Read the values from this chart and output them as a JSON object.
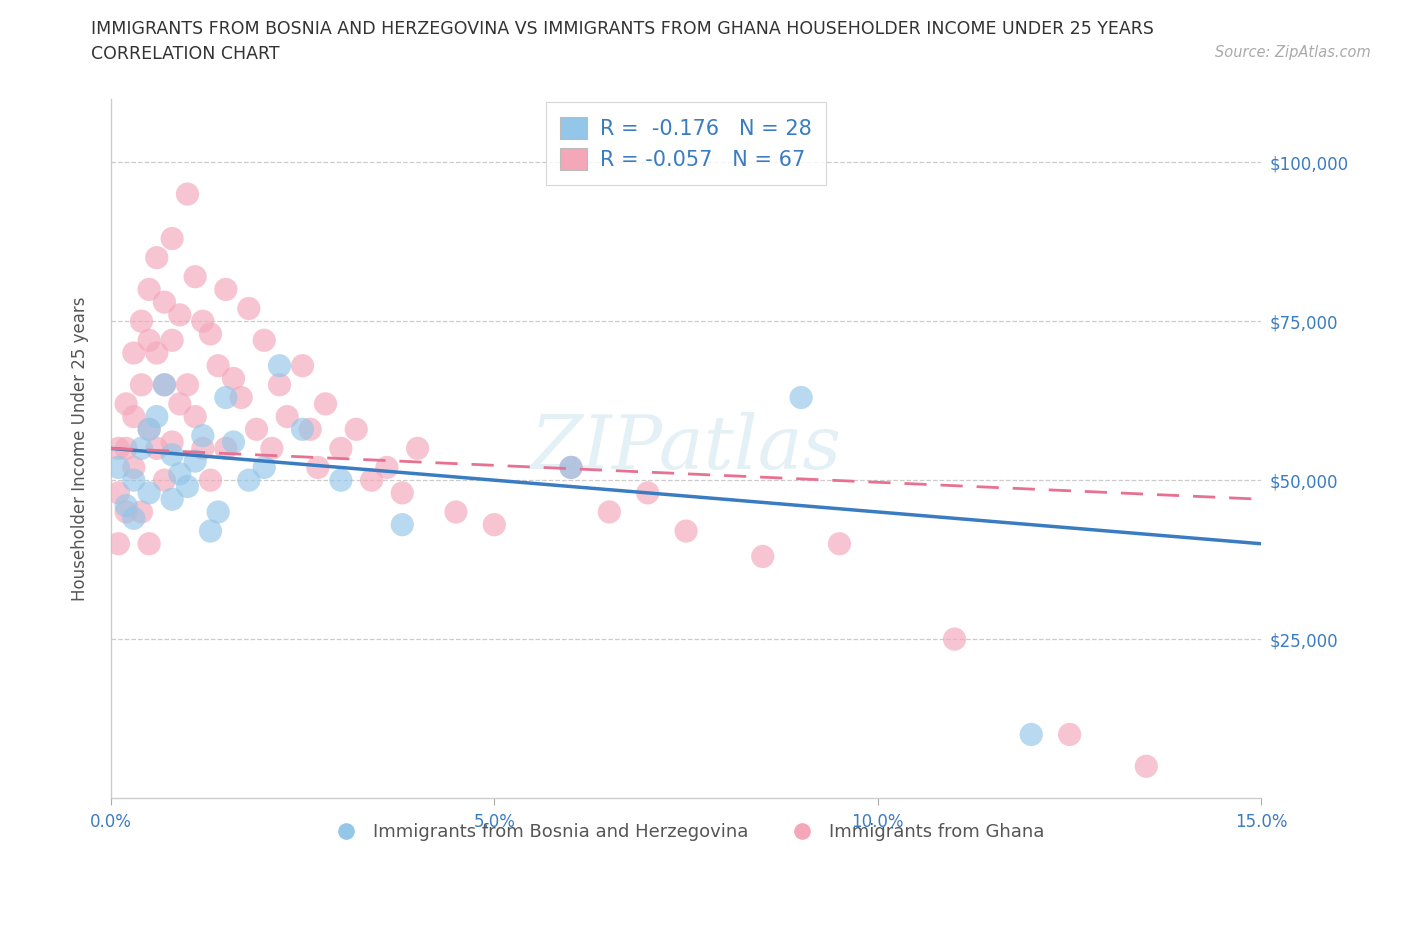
{
  "title_line1": "IMMIGRANTS FROM BOSNIA AND HERZEGOVINA VS IMMIGRANTS FROM GHANA HOUSEHOLDER INCOME UNDER 25 YEARS",
  "title_line2": "CORRELATION CHART",
  "source": "Source: ZipAtlas.com",
  "ylabel": "Householder Income Under 25 years",
  "xlim": [
    0.0,
    0.15
  ],
  "ylim": [
    0,
    110000
  ],
  "yticks": [
    0,
    25000,
    50000,
    75000,
    100000
  ],
  "ytick_labels": [
    "",
    "$25,000",
    "$50,000",
    "$75,000",
    "$100,000"
  ],
  "xticks": [
    0.0,
    0.05,
    0.1,
    0.15
  ],
  "xtick_labels": [
    "0.0%",
    "5.0%",
    "10.0%",
    "15.0%"
  ],
  "r1": -0.176,
  "n1": 28,
  "r2": -0.057,
  "n2": 67,
  "color_bosnia": "#93C6E8",
  "color_ghana": "#F4A7B9",
  "line_color_bosnia": "#3A7CC1",
  "line_color_ghana": "#E87090",
  "bosnia_x": [
    0.001,
    0.002,
    0.003,
    0.003,
    0.004,
    0.005,
    0.005,
    0.006,
    0.007,
    0.008,
    0.008,
    0.009,
    0.01,
    0.011,
    0.012,
    0.013,
    0.014,
    0.015,
    0.016,
    0.018,
    0.02,
    0.022,
    0.025,
    0.03,
    0.038,
    0.06,
    0.09,
    0.12
  ],
  "bosnia_y": [
    52000,
    46000,
    50000,
    44000,
    55000,
    58000,
    48000,
    60000,
    65000,
    54000,
    47000,
    51000,
    49000,
    53000,
    57000,
    42000,
    45000,
    63000,
    56000,
    50000,
    52000,
    68000,
    58000,
    50000,
    43000,
    52000,
    63000,
    10000
  ],
  "ghana_x": [
    0.001,
    0.001,
    0.001,
    0.002,
    0.002,
    0.002,
    0.003,
    0.003,
    0.003,
    0.004,
    0.004,
    0.004,
    0.005,
    0.005,
    0.005,
    0.005,
    0.006,
    0.006,
    0.006,
    0.007,
    0.007,
    0.007,
    0.008,
    0.008,
    0.008,
    0.009,
    0.009,
    0.01,
    0.01,
    0.011,
    0.011,
    0.012,
    0.012,
    0.013,
    0.013,
    0.014,
    0.015,
    0.015,
    0.016,
    0.017,
    0.018,
    0.019,
    0.02,
    0.021,
    0.022,
    0.023,
    0.025,
    0.026,
    0.027,
    0.028,
    0.03,
    0.032,
    0.034,
    0.036,
    0.038,
    0.04,
    0.045,
    0.05,
    0.06,
    0.065,
    0.07,
    0.075,
    0.085,
    0.095,
    0.11,
    0.125,
    0.135
  ],
  "ghana_y": [
    55000,
    48000,
    40000,
    62000,
    55000,
    45000,
    70000,
    60000,
    52000,
    75000,
    65000,
    45000,
    80000,
    72000,
    58000,
    40000,
    85000,
    70000,
    55000,
    78000,
    65000,
    50000,
    88000,
    72000,
    56000,
    76000,
    62000,
    95000,
    65000,
    82000,
    60000,
    75000,
    55000,
    73000,
    50000,
    68000,
    80000,
    55000,
    66000,
    63000,
    77000,
    58000,
    72000,
    55000,
    65000,
    60000,
    68000,
    58000,
    52000,
    62000,
    55000,
    58000,
    50000,
    52000,
    48000,
    55000,
    45000,
    43000,
    52000,
    45000,
    48000,
    42000,
    38000,
    40000,
    25000,
    10000,
    5000
  ]
}
